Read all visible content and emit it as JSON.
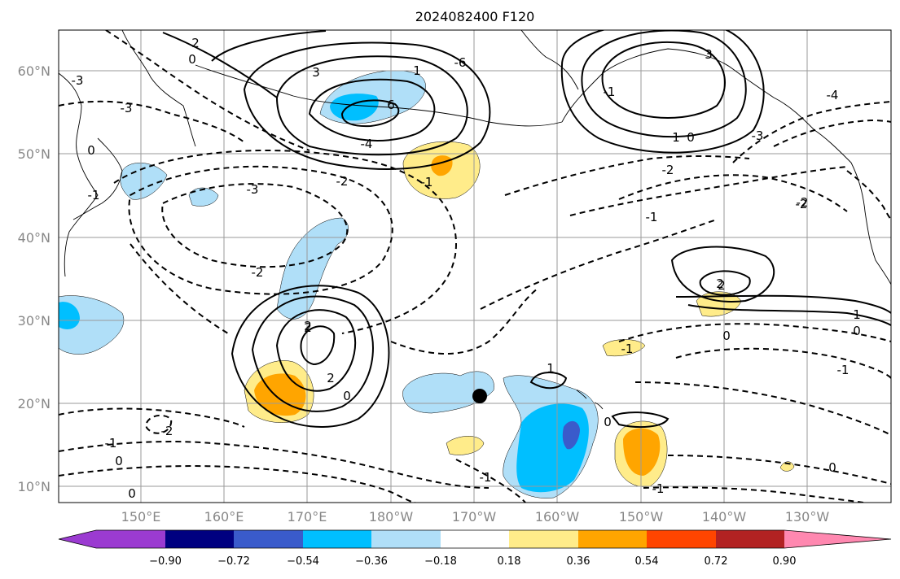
{
  "title": "2024082400 F120",
  "map": {
    "lat_labels": [
      "60°N",
      "50°N",
      "40°N",
      "30°N",
      "20°N",
      "10°N"
    ],
    "lon_labels": [
      "150°E",
      "160°E",
      "170°E",
      "180°W",
      "170°W",
      "160°W",
      "150°W",
      "140°W",
      "130°W"
    ],
    "contour_labels": [
      "2",
      "0",
      "-3",
      "3",
      "1",
      "-6",
      "6",
      "-4",
      "-1",
      "-2",
      "-3",
      "-2",
      "2",
      "3",
      "1",
      "0",
      "-1",
      "-2",
      "-3",
      "-4",
      "-2",
      "-1",
      "-3",
      "2",
      "1",
      "0",
      "0",
      "-1",
      "2",
      "2",
      "0",
      "-2",
      "-1",
      "0",
      "0",
      "-1",
      "1",
      "-1",
      "0",
      "0",
      "-1",
      "-2",
      "2",
      "-1",
      "0"
    ],
    "marker": "black-dot"
  },
  "colorbar": {
    "ticks": [
      "−0.90",
      "−0.72",
      "−0.54",
      "−0.36",
      "−0.18",
      "0.18",
      "0.36",
      "0.54",
      "0.72",
      "0.90"
    ],
    "colors": [
      "#9b3bd1",
      "#000080",
      "#3a5bcb",
      "#00bfff",
      "#b0dff8",
      "#ffffff",
      "#ffec8a",
      "#ffa500",
      "#ff4500",
      "#b22222",
      "#ff88b0"
    ]
  }
}
